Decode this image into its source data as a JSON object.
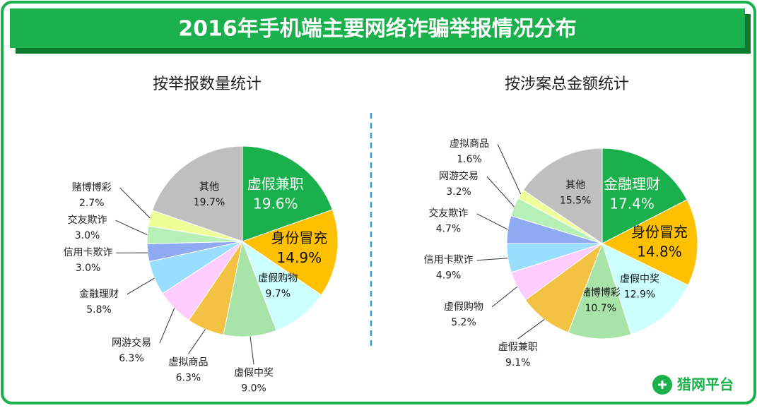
{
  "title": "2016年手机端主要网络诈骗举报情况分布",
  "logo": "猎网平台",
  "chart_data": [
    {
      "type": "pie",
      "title": "按举报数量统计",
      "categories": [
        "虚假兼职",
        "身份冒充",
        "虚假购物",
        "虚假中奖",
        "虚拟商品",
        "网游交易",
        "金融理财",
        "信用卡欺诈",
        "交友欺诈",
        "赌博博彩",
        "其他"
      ],
      "values": [
        19.6,
        14.9,
        9.7,
        9.0,
        6.3,
        6.3,
        5.8,
        3.0,
        3.0,
        2.7,
        19.7
      ],
      "value_labels": [
        "19.6%",
        "14.9%",
        "9.7%",
        "9.0%",
        "6.3%",
        "6.3%",
        "5.8%",
        "3.0%",
        "3.0%",
        "2.7%",
        "19.7%"
      ],
      "colors": [
        "#1ab04c",
        "#ffc000",
        "#ccffff",
        "#a8e4a8",
        "#f4c242",
        "#ffccff",
        "#99ddff",
        "#8eaaf0",
        "#b7f0b7",
        "#eeff99",
        "#bfbfbf"
      ]
    },
    {
      "type": "pie",
      "title": "按涉案总金额统计",
      "categories": [
        "金融理财",
        "身份冒充",
        "虚假中奖",
        "赌博博彩",
        "虚假兼职",
        "虚假购物",
        "信用卡欺诈",
        "交友欺诈",
        "网游交易",
        "虚拟商品",
        "其他"
      ],
      "values": [
        17.4,
        14.8,
        12.9,
        10.7,
        9.1,
        5.2,
        4.9,
        4.7,
        3.2,
        1.6,
        15.5
      ],
      "value_labels": [
        "17.4%",
        "14.8%",
        "12.9%",
        "10.7%",
        "9.1%",
        "5.2%",
        "4.9%",
        "4.7%",
        "3.2%",
        "1.6%",
        "15.5%"
      ],
      "colors": [
        "#1ab04c",
        "#ffc000",
        "#ccffff",
        "#a8e4a8",
        "#f4c242",
        "#ffccff",
        "#99ddff",
        "#8eaaf0",
        "#b7f0b7",
        "#eeff99",
        "#bfbfbf"
      ]
    }
  ]
}
